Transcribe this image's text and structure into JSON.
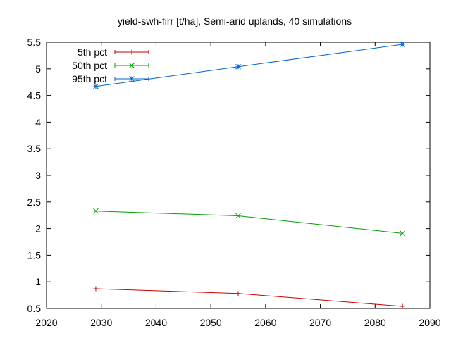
{
  "chart_data": {
    "type": "line",
    "title": "yield-swh-firr [t/ha], Semi-arid uplands, 40 simulations",
    "xlabel": "",
    "ylabel": "",
    "xlim": [
      2020,
      2090
    ],
    "ylim": [
      0.5,
      5.5
    ],
    "xticks": [
      2020,
      2030,
      2040,
      2050,
      2060,
      2070,
      2080,
      2090
    ],
    "yticks": [
      0.5,
      1,
      1.5,
      2,
      2.5,
      3,
      3.5,
      4,
      4.5,
      5,
      5.5
    ],
    "x": [
      2029,
      2055,
      2085
    ],
    "series": [
      {
        "name": "5th pct",
        "values": [
          0.87,
          0.78,
          0.54
        ],
        "color": "#cc0000",
        "marker": "plus"
      },
      {
        "name": "50th pct",
        "values": [
          2.33,
          2.24,
          1.91
        ],
        "color": "#00a000",
        "marker": "cross"
      },
      {
        "name": "95th pct",
        "values": [
          4.67,
          5.04,
          5.46
        ],
        "color": "#0066cc",
        "marker": "star"
      }
    ],
    "grid": false,
    "legend_position": "top-left"
  }
}
